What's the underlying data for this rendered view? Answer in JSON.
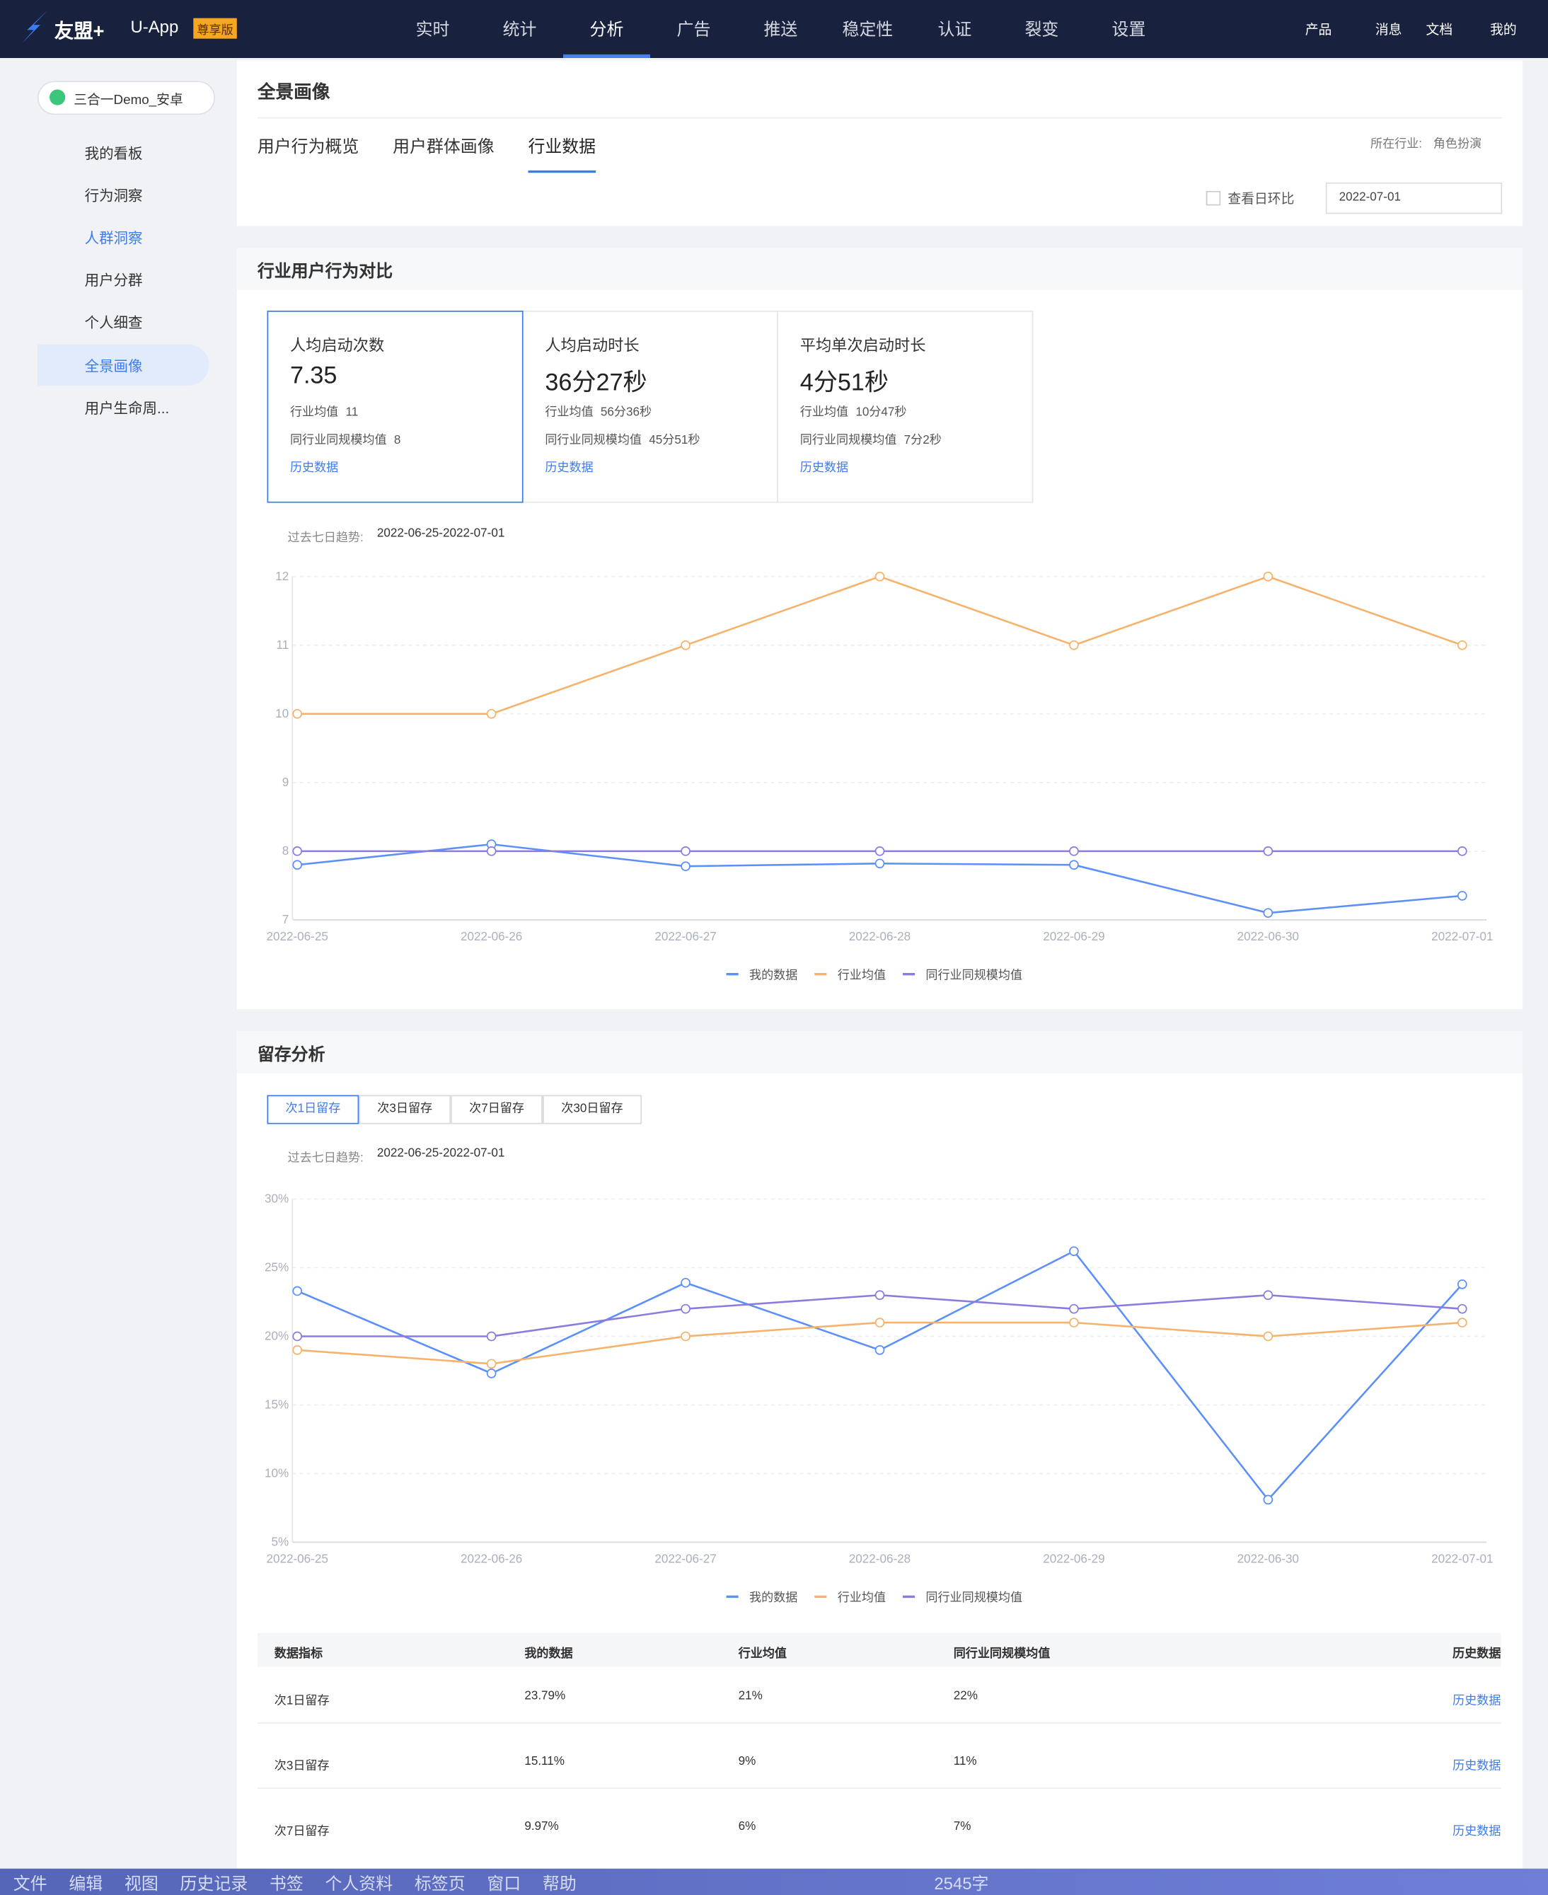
{
  "nav": {
    "brand": "友盟+",
    "product": "U-App",
    "badge": "尊享版",
    "menu": [
      "实时",
      "统计",
      "分析",
      "广告",
      "推送",
      "稳定性",
      "认证",
      "裂变",
      "设置"
    ],
    "right": [
      "产品",
      "消息",
      "文档",
      "我的"
    ]
  },
  "sidebar": {
    "app": "三合一Demo_安卓",
    "items": [
      "我的看板",
      "行为洞察",
      "人群洞察",
      "用户分群",
      "个人细查",
      "全景画像",
      "用户生命周..."
    ]
  },
  "header": {
    "title": "全景画像",
    "tabs": [
      "用户行为概览",
      "用户群体画像",
      "行业数据"
    ],
    "industry_label": "所在行业:",
    "industry": "角色扮演",
    "compare": "查看日环比",
    "date": "2022-07-01"
  },
  "behavior": {
    "title": "行业用户行为对比",
    "cards": [
      {
        "name": "人均启动次数",
        "value": "7.35",
        "avg_label": "行业均值",
        "avg": "11",
        "peer_label": "同行业同规模均值",
        "peer": "8",
        "link": "历史数据"
      },
      {
        "name": "人均启动时长",
        "value": "36分27秒",
        "avg_label": "行业均值",
        "avg": "56分36秒",
        "peer_label": "同行业同规模均值",
        "peer": "45分51秒",
        "link": "历史数据"
      },
      {
        "name": "平均单次启动时长",
        "value": "4分51秒",
        "avg_label": "行业均值",
        "avg": "10分47秒",
        "peer_label": "同行业同规模均值",
        "peer": "7分2秒",
        "link": "历史数据"
      }
    ],
    "trend_label": "过去七日趋势:",
    "trend_range": "2022-06-25-2022-07-01"
  },
  "chart_data": [
    {
      "type": "line",
      "categories": [
        "2022-06-25",
        "2022-06-26",
        "2022-06-27",
        "2022-06-28",
        "2022-06-29",
        "2022-06-30",
        "2022-07-01"
      ],
      "series": [
        {
          "name": "我的数据",
          "color": "#5b8ff9",
          "values": [
            7.8,
            8.1,
            7.78,
            7.82,
            7.8,
            7.1,
            7.35
          ]
        },
        {
          "name": "行业均值",
          "color": "#f6b26b",
          "values": [
            10,
            10,
            11,
            12,
            11,
            12,
            11
          ]
        },
        {
          "name": "同行业同规模均值",
          "color": "#8b7ae0",
          "values": [
            8,
            8,
            8,
            8,
            8,
            8,
            8
          ]
        }
      ],
      "ylim": [
        7,
        12
      ],
      "yticks": [
        7,
        8,
        9,
        10,
        11,
        12
      ],
      "grid": true,
      "legend": "bottom"
    },
    {
      "type": "line",
      "categories": [
        "2022-06-25",
        "2022-06-26",
        "2022-06-27",
        "2022-06-28",
        "2022-06-29",
        "2022-06-30",
        "2022-07-01"
      ],
      "series": [
        {
          "name": "我的数据",
          "color": "#5b8ff9",
          "values": [
            23.3,
            17.3,
            23.9,
            19,
            26.2,
            8.1,
            23.79
          ]
        },
        {
          "name": "行业均值",
          "color": "#f6b26b",
          "values": [
            19,
            18,
            20,
            21,
            21,
            20,
            21
          ]
        },
        {
          "name": "同行业同规模均值",
          "color": "#8b7ae0",
          "values": [
            20,
            20,
            22,
            23,
            22,
            23,
            22
          ]
        }
      ],
      "ylim": [
        5,
        30
      ],
      "yticks": [
        {
          "value": 5,
          "label": "5%"
        },
        {
          "value": 10,
          "label": "10%"
        },
        {
          "value": 15,
          "label": "15%"
        },
        {
          "value": 20,
          "label": "20%"
        },
        {
          "value": 25,
          "label": "25%"
        },
        {
          "value": 30,
          "label": "30%"
        }
      ],
      "grid": true,
      "legend": "bottom"
    }
  ],
  "retention": {
    "title": "留存分析",
    "tabs": [
      "次1日留存",
      "次3日留存",
      "次7日留存",
      "次30日留存"
    ],
    "trend_label": "过去七日趋势:",
    "trend_range": "2022-06-25-2022-07-01",
    "table": {
      "header": [
        "数据指标",
        "我的数据",
        "行业均值",
        "同行业同规模均值",
        "历史数据"
      ],
      "rows": [
        [
          "次1日留存",
          "23.79%",
          "21%",
          "22%",
          "历史数据"
        ],
        [
          "次3日留存",
          "15.11%",
          "9%",
          "11%",
          "历史数据"
        ],
        [
          "次7日留存",
          "9.97%",
          "6%",
          "7%",
          "历史数据"
        ]
      ]
    }
  },
  "taskbar": {
    "menu": [
      "文件",
      "编辑",
      "视图",
      "历史记录",
      "书签",
      "个人资料",
      "标签页",
      "窗口",
      "帮助"
    ],
    "count": "2545字"
  }
}
